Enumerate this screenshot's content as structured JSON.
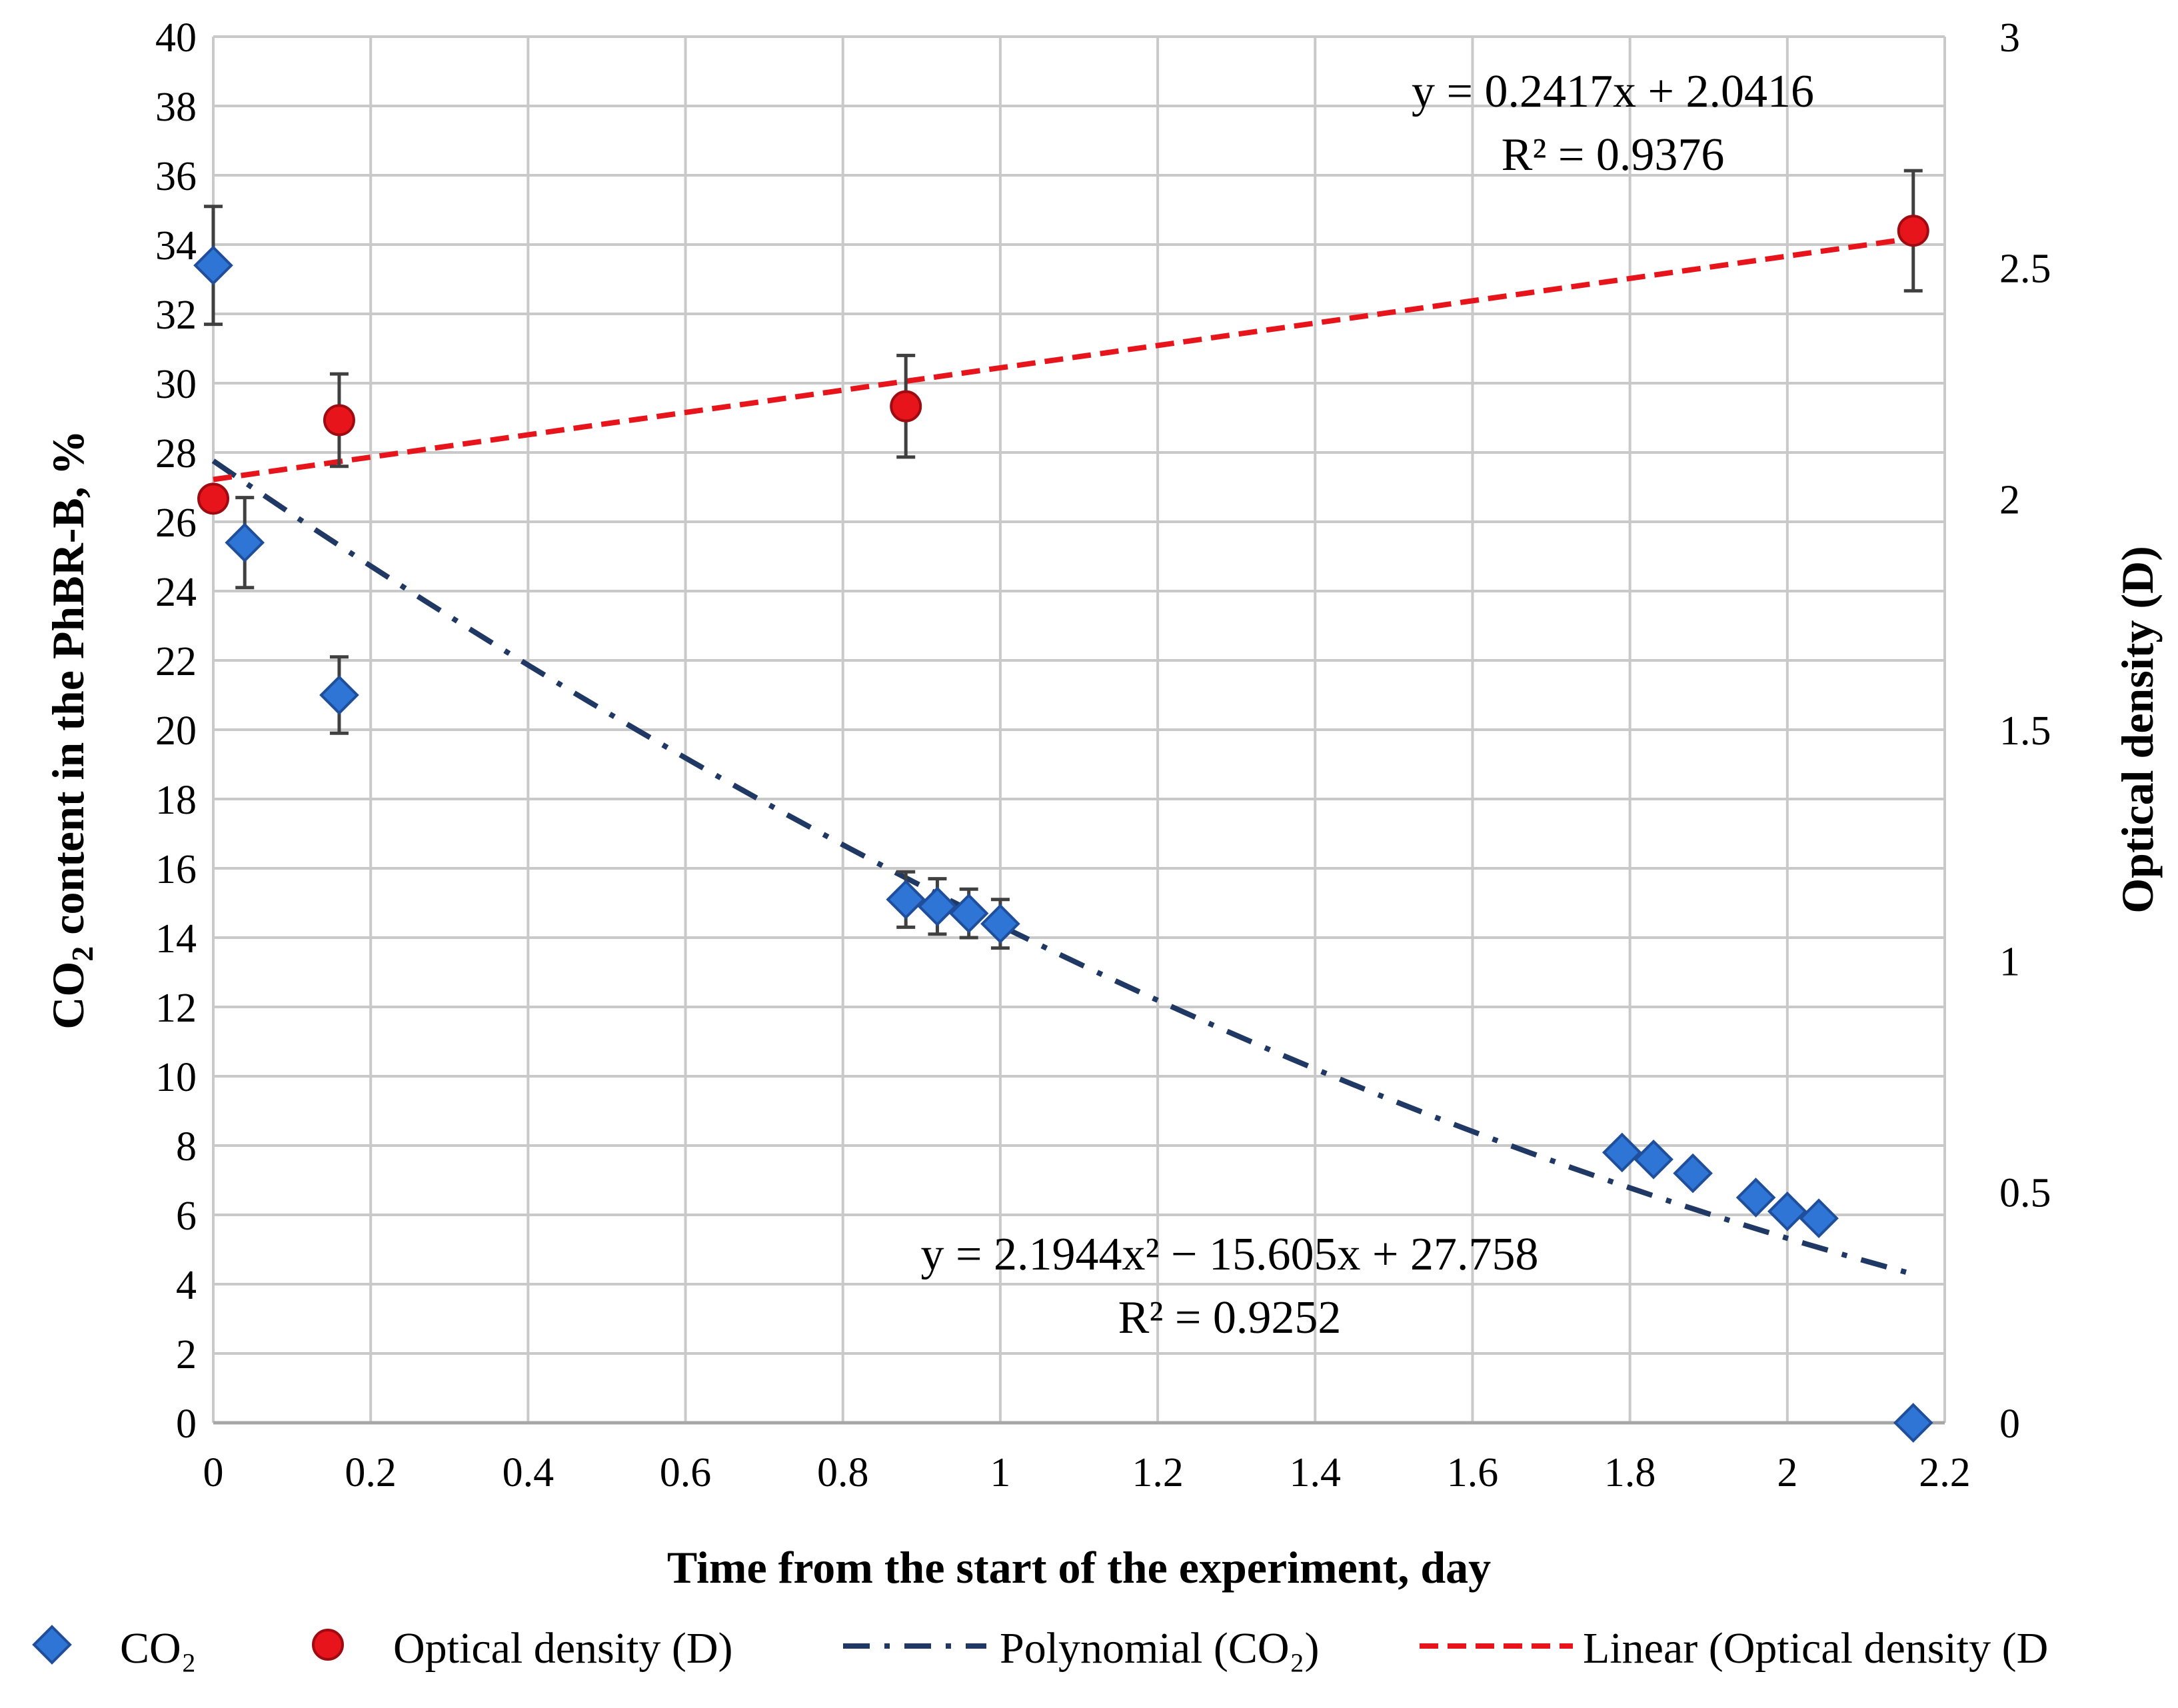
{
  "chart_data": {
    "type": "scatter",
    "x_axis": {
      "label": "Time from the start of the experiment, day",
      "range": [
        0,
        2.2
      ],
      "ticks": [
        "0",
        "0.2",
        "0.4",
        "0.6",
        "0.8",
        "1",
        "1.2",
        "1.4",
        "1.6",
        "1.8",
        "2",
        "2.2"
      ],
      "tick_values": [
        0,
        0.2,
        0.4,
        0.6,
        0.8,
        1.0,
        1.2,
        1.4,
        1.6,
        1.8,
        2.0,
        2.2
      ]
    },
    "y_left": {
      "label_prefix": "CO",
      "label_sub": "2",
      "label_suffix": " content in the PhBR-B, %",
      "range": [
        0,
        40
      ],
      "ticks": [
        "0",
        "2",
        "4",
        "6",
        "8",
        "10",
        "12",
        "14",
        "16",
        "18",
        "20",
        "22",
        "24",
        "26",
        "28",
        "30",
        "32",
        "34",
        "36",
        "38",
        "40"
      ],
      "tick_values": [
        0,
        2,
        4,
        6,
        8,
        10,
        12,
        14,
        16,
        18,
        20,
        22,
        24,
        26,
        28,
        30,
        32,
        34,
        36,
        38,
        40
      ]
    },
    "y_right": {
      "label": "Optical density (D)",
      "range": [
        0,
        3
      ],
      "ticks": [
        "0",
        "0.5",
        "1",
        "1.5",
        "2",
        "2.5",
        "3"
      ],
      "tick_values": [
        0,
        0.5,
        1,
        1.5,
        2,
        2.5,
        3
      ]
    },
    "grid": true,
    "series": [
      {
        "name": "CO₂",
        "marker": "diamond",
        "color": "#2E75D6",
        "axis": "left",
        "x": [
          0,
          0.04,
          0.16,
          0.88,
          0.92,
          0.96,
          1.0,
          1.79,
          1.83,
          1.88,
          1.96,
          2.0,
          2.04,
          2.16
        ],
        "y": [
          33.4,
          25.4,
          21.0,
          15.1,
          14.9,
          14.7,
          14.4,
          7.8,
          7.6,
          7.2,
          6.5,
          6.1,
          5.9,
          0
        ],
        "error": [
          1.7,
          1.3,
          1.1,
          0.8,
          0.8,
          0.7,
          0.7,
          0,
          0,
          0,
          0,
          0,
          0,
          0
        ]
      },
      {
        "name": "Optical density (D)",
        "marker": "circle",
        "color": "#E8141B",
        "axis": "right",
        "x": [
          0,
          0.16,
          0.88,
          2.16
        ],
        "y": [
          2.0,
          2.17,
          2.2,
          2.58
        ],
        "error": [
          0,
          0.1,
          0.11,
          0.13
        ]
      }
    ],
    "trendlines": [
      {
        "name": "Polynomial (CO₂)",
        "kind": "polynomial",
        "axis": "left",
        "coefficients": [
          2.1944,
          -15.605,
          27.758
        ],
        "x_range": [
          0,
          2.16
        ],
        "color": "#1F3864",
        "style": "dash-dot",
        "equation": "y = 2.1944x² − 15.605x + 27.758",
        "r2": "R² = 0.9252"
      },
      {
        "name": "Linear (Optical density (D))",
        "kind": "linear",
        "axis": "right",
        "coefficients": [
          0.2417,
          2.0416
        ],
        "x_range": [
          0,
          2.16
        ],
        "color": "#E8141B",
        "style": "dashed",
        "equation": "y = 0.2417x + 2.0416",
        "r2": "R² = 0.9376"
      }
    ],
    "legend": {
      "position": "bottom",
      "items": [
        {
          "label": "CO₂",
          "kind": "diamond"
        },
        {
          "label": "Optical density (D)",
          "kind": "circle"
        },
        {
          "label": "Polynomial (CO₂)",
          "kind": "dash-dot"
        },
        {
          "label": "Linear (Optical density (D",
          "kind": "dashed"
        }
      ]
    }
  }
}
